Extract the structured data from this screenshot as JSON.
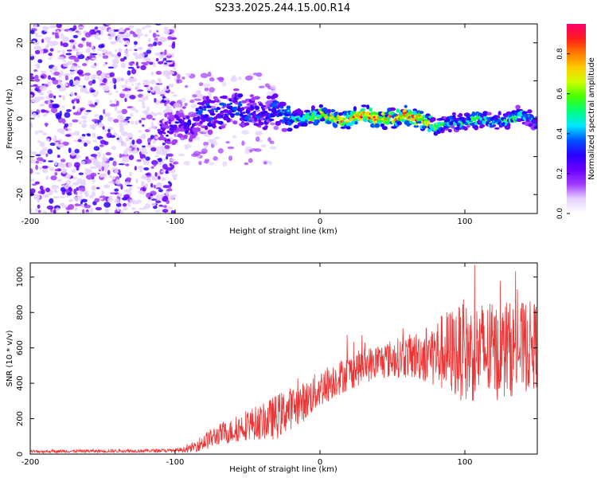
{
  "title": "S233.2025.244.15.00.R14",
  "chart_data": [
    {
      "type": "heatmap",
      "xlabel": "Height of straight line (km)",
      "ylabel": "Frequency (Hz)",
      "xlim": [
        -200,
        150
      ],
      "ylim": [
        -25,
        25
      ],
      "xticks": [
        -200,
        -100,
        0,
        100
      ],
      "yticks": [
        -20,
        -10,
        0,
        10,
        20
      ],
      "colorbar": {
        "label": "Normalized spectral amplitude",
        "range": [
          0,
          0.95
        ],
        "ticks": [
          0.0,
          0.2,
          0.4,
          0.6,
          0.8
        ],
        "colors": [
          "#ffffff",
          "#e6d2ff",
          "#a23cff",
          "#6a00ff",
          "#2c00ff",
          "#0050ff",
          "#00e6ff",
          "#00ff80",
          "#44ff00",
          "#ccff00",
          "#ffcc00",
          "#ff7a00",
          "#ff1a1a",
          "#ff0070"
        ]
      },
      "ridge": {
        "description_values": "dominant frequency (Hz) vs height (km)",
        "x": [
          -110,
          -100,
          -90,
          -80,
          -70,
          -60,
          -50,
          -40,
          -30,
          -20,
          -10,
          0,
          10,
          20,
          30,
          40,
          50,
          60,
          70,
          80,
          90,
          100,
          110,
          120,
          130,
          140,
          150
        ],
        "freq": [
          -3,
          -2,
          -1,
          1,
          2,
          3,
          2,
          1,
          2,
          0,
          0,
          1,
          0,
          0,
          1,
          0,
          0,
          1,
          0,
          -2,
          -1,
          -1,
          0,
          -1,
          0,
          1,
          -1
        ],
        "amplitude": [
          0.25,
          0.3,
          0.3,
          0.35,
          0.35,
          0.35,
          0.35,
          0.35,
          0.4,
          0.45,
          0.55,
          0.65,
          0.75,
          0.8,
          0.85,
          0.8,
          0.8,
          0.85,
          0.85,
          0.6,
          0.5,
          0.5,
          0.55,
          0.5,
          0.55,
          0.45,
          0.4
        ]
      },
      "noise_region_km": [
        -200,
        -100
      ]
    },
    {
      "type": "line",
      "xlabel": "Height of straight line (km)",
      "ylabel": "SNR (10 * v/v)",
      "xlim": [
        -200,
        150
      ],
      "ylim": [
        0,
        1080
      ],
      "xticks": [
        -200,
        -100,
        0,
        100
      ],
      "yticks": [
        0,
        200,
        400,
        600,
        800,
        1000
      ],
      "color": "#ee3333",
      "envelope": {
        "x": [
          -200,
          -100,
          -90,
          -80,
          -70,
          -60,
          -50,
          -40,
          -30,
          -20,
          -10,
          0,
          10,
          20,
          30,
          40,
          50,
          60,
          70,
          80,
          90,
          100,
          110,
          120,
          130,
          140,
          150
        ],
        "mean": [
          15,
          20,
          30,
          70,
          110,
          130,
          170,
          180,
          210,
          260,
          300,
          370,
          420,
          460,
          500,
          520,
          540,
          550,
          560,
          570,
          580,
          570,
          580,
          570,
          590,
          600,
          620
        ],
        "spread": [
          8,
          10,
          20,
          50,
          60,
          70,
          90,
          100,
          130,
          120,
          110,
          110,
          100,
          100,
          100,
          100,
          110,
          120,
          150,
          200,
          250,
          280,
          290,
          280,
          270,
          260,
          250
        ],
        "peak": [
          30,
          40,
          60,
          160,
          170,
          220,
          350,
          380,
          470,
          450,
          480,
          560,
          640,
          700,
          680,
          640,
          720,
          740,
          720,
          840,
          920,
          1050,
          1080,
          1000,
          1040,
          1050,
          800
        ]
      }
    }
  ]
}
